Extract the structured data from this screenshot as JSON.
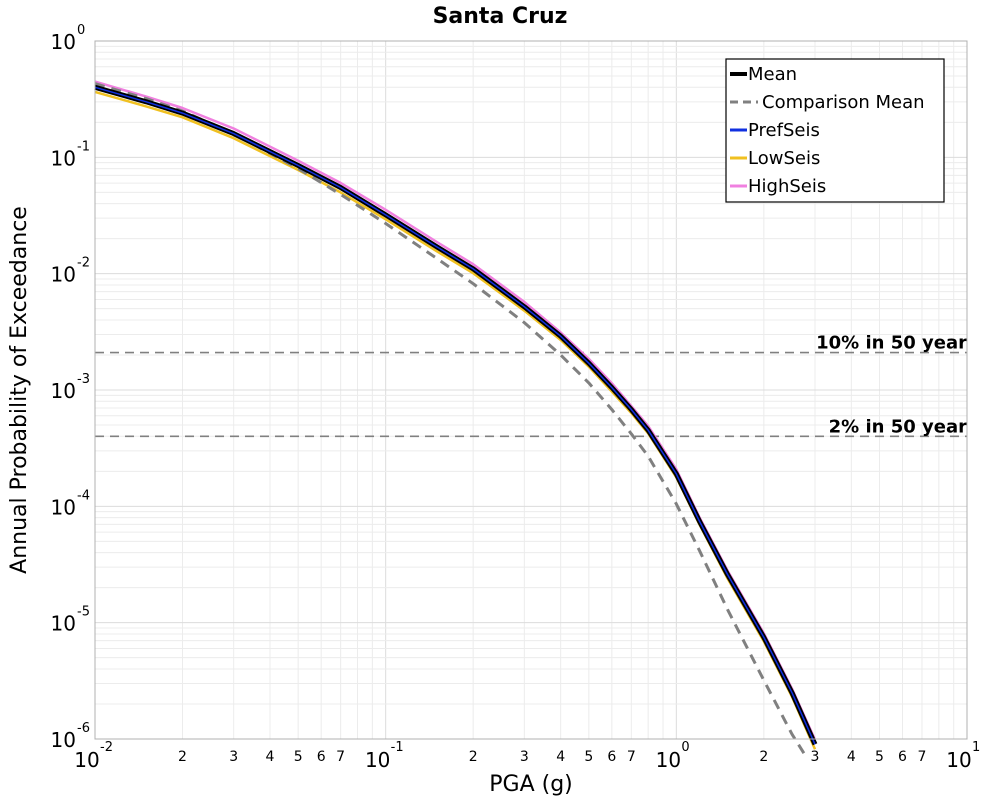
{
  "chart_data": {
    "type": "line",
    "title": "Santa Cruz",
    "xlabel": "PGA (g)",
    "ylabel": "Annual Probability of Exceedance",
    "xscale": "log",
    "yscale": "log",
    "xlim": [
      0.01,
      10
    ],
    "ylim": [
      1e-06,
      1
    ],
    "grid": true,
    "legend_position": "top-right",
    "x_ticks": [
      {
        "base": "10",
        "exp": "-2"
      },
      {
        "base": "10",
        "exp": "-1"
      },
      {
        "base": "10",
        "exp": "0"
      },
      {
        "base": "10",
        "exp": "1"
      }
    ],
    "y_ticks": [
      {
        "base": "10",
        "exp": "0"
      },
      {
        "base": "10",
        "exp": "-1"
      },
      {
        "base": "10",
        "exp": "-2"
      },
      {
        "base": "10",
        "exp": "-3"
      },
      {
        "base": "10",
        "exp": "-4"
      },
      {
        "base": "10",
        "exp": "-5"
      },
      {
        "base": "10",
        "exp": "-6"
      }
    ],
    "minor_tick_labels": [
      "2",
      "3",
      "4",
      "5",
      "6",
      "7"
    ],
    "series": [
      {
        "name": "Mean",
        "color": "#000000",
        "style": "solid",
        "x": [
          0.01,
          0.015,
          0.02,
          0.03,
          0.05,
          0.07,
          0.1,
          0.15,
          0.2,
          0.3,
          0.4,
          0.5,
          0.6,
          0.7,
          0.8,
          1.0,
          1.2,
          1.5,
          2.0,
          2.5,
          3.0
        ],
        "y": [
          0.4,
          0.3,
          0.24,
          0.16,
          0.085,
          0.055,
          0.032,
          0.017,
          0.011,
          0.0052,
          0.0029,
          0.0017,
          0.00105,
          0.00068,
          0.00045,
          0.00019,
          7.5e-05,
          2.6e-05,
          7.5e-06,
          2.5e-06,
          9e-07
        ]
      },
      {
        "name": "Comparison Mean",
        "color": "#808080",
        "style": "dashed",
        "x": [
          0.01,
          0.015,
          0.02,
          0.03,
          0.05,
          0.07,
          0.1,
          0.15,
          0.2,
          0.3,
          0.4,
          0.5,
          0.6,
          0.7,
          0.8,
          1.0,
          1.2,
          1.5,
          2.0,
          2.5,
          2.8
        ],
        "y": [
          0.43,
          0.32,
          0.25,
          0.16,
          0.08,
          0.048,
          0.027,
          0.0135,
          0.0082,
          0.0038,
          0.002,
          0.00115,
          0.00068,
          0.00042,
          0.00027,
          0.000105,
          4.2e-05,
          1.3e-05,
          3.2e-06,
          1.1e-06,
          7e-07
        ]
      },
      {
        "name": "PrefSeis",
        "color": "#1030e0",
        "style": "solid",
        "x": [
          0.01,
          0.015,
          0.02,
          0.03,
          0.05,
          0.07,
          0.1,
          0.15,
          0.2,
          0.3,
          0.4,
          0.5,
          0.6,
          0.7,
          0.8,
          1.0,
          1.2,
          1.5,
          2.0,
          2.5,
          3.0
        ],
        "y": [
          0.4,
          0.3,
          0.24,
          0.16,
          0.085,
          0.055,
          0.032,
          0.017,
          0.011,
          0.0052,
          0.0029,
          0.0017,
          0.00105,
          0.00068,
          0.00045,
          0.00019,
          7.5e-05,
          2.6e-05,
          7.5e-06,
          2.5e-06,
          9e-07
        ]
      },
      {
        "name": "LowSeis",
        "color": "#f0c020",
        "style": "solid",
        "x": [
          0.01,
          0.015,
          0.02,
          0.03,
          0.05,
          0.07,
          0.1,
          0.15,
          0.2,
          0.3,
          0.4,
          0.5,
          0.6,
          0.7,
          0.8,
          1.0,
          1.2,
          1.5,
          2.0,
          2.5,
          3.0
        ],
        "y": [
          0.38,
          0.285,
          0.23,
          0.152,
          0.081,
          0.052,
          0.0305,
          0.0162,
          0.0105,
          0.005,
          0.0028,
          0.00165,
          0.00101,
          0.00066,
          0.00044,
          0.000185,
          7.3e-05,
          2.5e-05,
          7.2e-06,
          2.4e-06,
          8.5e-07
        ]
      },
      {
        "name": "HighSeis",
        "color": "#f080e0",
        "style": "solid",
        "x": [
          0.01,
          0.015,
          0.02,
          0.03,
          0.05,
          0.07,
          0.1,
          0.15,
          0.2,
          0.3,
          0.4,
          0.5,
          0.6,
          0.7,
          0.8,
          1.0,
          1.2,
          1.5,
          2.0,
          2.5,
          3.0
        ],
        "y": [
          0.43,
          0.32,
          0.255,
          0.17,
          0.09,
          0.058,
          0.034,
          0.018,
          0.0116,
          0.0055,
          0.003,
          0.00178,
          0.0011,
          0.0007,
          0.00047,
          0.0002,
          7.8e-05,
          2.7e-05,
          7.8e-06,
          2.6e-06,
          9.5e-07
        ]
      }
    ],
    "reference_lines": [
      {
        "label": "10% in 50 year",
        "y": 0.0021,
        "color": "#808080",
        "style": "dashed"
      },
      {
        "label": "2% in 50 year",
        "y": 0.0004,
        "color": "#808080",
        "style": "dashed"
      }
    ]
  }
}
